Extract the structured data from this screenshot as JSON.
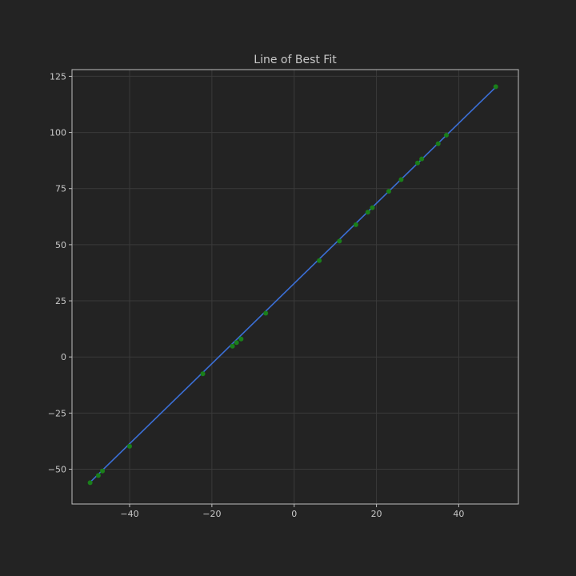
{
  "chart_data": {
    "type": "scatter",
    "title": "Line of Best Fit",
    "xlabel": "",
    "ylabel": "",
    "xlim": [
      -54,
      54.5
    ],
    "ylim": [
      -65.5,
      128
    ],
    "xticks": [
      -40,
      -20,
      0,
      20,
      40
    ],
    "yticks": [
      -50,
      -25,
      0,
      25,
      50,
      75,
      100,
      125
    ],
    "xtick_labels": [
      "−40",
      "−20",
      "0",
      "20",
      "40"
    ],
    "ytick_labels": [
      "−50",
      "−25",
      "0",
      "25",
      "50",
      "75",
      "100",
      "125"
    ],
    "grid": true,
    "series": [
      {
        "kind": "scatter",
        "color": "#1a7f1a",
        "x": [
          -49.6,
          -47.6,
          -46.6,
          -40.0,
          -22.2,
          -15.0,
          -14.0,
          -12.9,
          -6.9,
          6.1,
          11.0,
          15.0,
          17.9,
          19.0,
          23.0,
          26.0,
          30.0,
          31.0,
          35.0,
          37.0,
          49.0
        ],
        "y": [
          -56.0,
          -52.8,
          -50.8,
          -39.8,
          -7.5,
          4.8,
          6.4,
          8.0,
          19.5,
          42.9,
          51.6,
          58.9,
          64.5,
          66.5,
          73.8,
          79.0,
          86.4,
          88.2,
          95.0,
          98.8,
          120.4
        ]
      },
      {
        "kind": "line",
        "color": "#3b6fd6",
        "x": [
          -49.6,
          49.0
        ],
        "y": [
          -55.8,
          120.2
        ]
      }
    ],
    "colors": {
      "background": "#232323",
      "axes_face": "#232323",
      "axes_edge": "#bcbcbc",
      "grid": "#3a3a3a",
      "text": "#c8c8c8"
    }
  }
}
